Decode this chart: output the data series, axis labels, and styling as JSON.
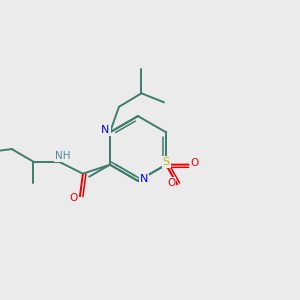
{
  "bg_color": "#ebebeb",
  "bond_color": "#3d7d6d",
  "atom_colors": {
    "N": "#0000ee",
    "O": "#ee0000",
    "S": "#bbbb00",
    "H": "#5588aa",
    "C": "#3d7d6d"
  },
  "figsize": [
    3.0,
    3.0
  ],
  "dpi": 100
}
